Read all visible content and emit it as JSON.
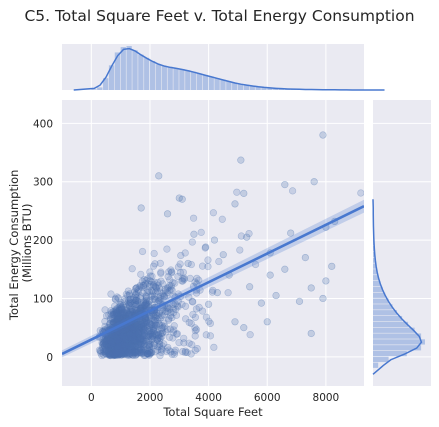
{
  "chart_data": {
    "type": "scatter",
    "title": "C5. Total Square Feet v. Total Energy Consumption",
    "xlabel": "Total Square Feet",
    "ylabel_lines": [
      "Total Energy Consumption",
      "(Millions BTU)"
    ],
    "xlim": [
      -1000,
      9300
    ],
    "ylim": [
      -50,
      440
    ],
    "xticks": [
      0,
      2000,
      4000,
      6000,
      8000
    ],
    "yticks": [
      0,
      100,
      200,
      300,
      400
    ],
    "grid": true,
    "regression_line": {
      "x": [
        -1000,
        9300
      ],
      "y": [
        5,
        258
      ]
    },
    "regression_band_halfwidth_at_edges": [
      6,
      11
    ],
    "marginal_x": {
      "bin_width": 200,
      "bins_start": 0,
      "counts": [
        3,
        12,
        55,
        115,
        175,
        200,
        205,
        185,
        165,
        150,
        135,
        120,
        112,
        108,
        102,
        98,
        92,
        85,
        77,
        70,
        62,
        55,
        48,
        40,
        33,
        27,
        23,
        19,
        15,
        12,
        10,
        8,
        6,
        5,
        4,
        3,
        3,
        2,
        2,
        1,
        1,
        1,
        1,
        0,
        0,
        0,
        0,
        0,
        0,
        0
      ],
      "kde_peak_x": 1000
    },
    "marginal_y": {
      "bin_width": 10,
      "bins_start": -20,
      "counts": [
        20,
        60,
        130,
        185,
        200,
        185,
        160,
        135,
        112,
        92,
        75,
        60,
        47,
        37,
        28,
        21,
        16,
        12,
        9,
        7,
        5,
        4,
        3,
        2,
        2,
        1,
        1,
        1
      ],
      "kde_peak_y": 45
    },
    "outlier_points": [
      [
        7900,
        380
      ],
      [
        5100,
        337
      ],
      [
        2300,
        310
      ],
      [
        7600,
        300
      ],
      [
        5200,
        280
      ],
      [
        6600,
        295
      ],
      [
        3000,
        272
      ],
      [
        3100,
        270
      ],
      [
        4900,
        262
      ],
      [
        1700,
        255
      ],
      [
        2600,
        245
      ],
      [
        8300,
        232
      ],
      [
        8000,
        222
      ],
      [
        6800,
        212
      ],
      [
        5300,
        205
      ],
      [
        6100,
        178
      ],
      [
        7300,
        170
      ],
      [
        6600,
        150
      ],
      [
        8200,
        155
      ],
      [
        6100,
        140
      ],
      [
        8000,
        130
      ],
      [
        7500,
        118
      ],
      [
        6300,
        105
      ],
      [
        7900,
        100
      ],
      [
        7100,
        95
      ],
      [
        5800,
        92
      ],
      [
        4900,
        60
      ],
      [
        5200,
        50
      ],
      [
        7500,
        40
      ],
      [
        6000,
        60
      ],
      [
        3500,
        210
      ],
      [
        4200,
        200
      ],
      [
        3900,
        188
      ],
      [
        4500,
        175
      ],
      [
        3300,
        160
      ],
      [
        4700,
        140
      ],
      [
        5400,
        120
      ],
      [
        4300,
        110
      ],
      [
        3600,
        125
      ],
      [
        4000,
        90
      ]
    ],
    "random_cloud": {
      "count": 1500,
      "seed": 7
    },
    "colors": {
      "point": "#4c72b0",
      "line": "#4878cf",
      "band": "#4878cf",
      "hist": "#a8bde3",
      "axes_bg": "#eaeaf2",
      "grid": "#ffffff"
    }
  }
}
